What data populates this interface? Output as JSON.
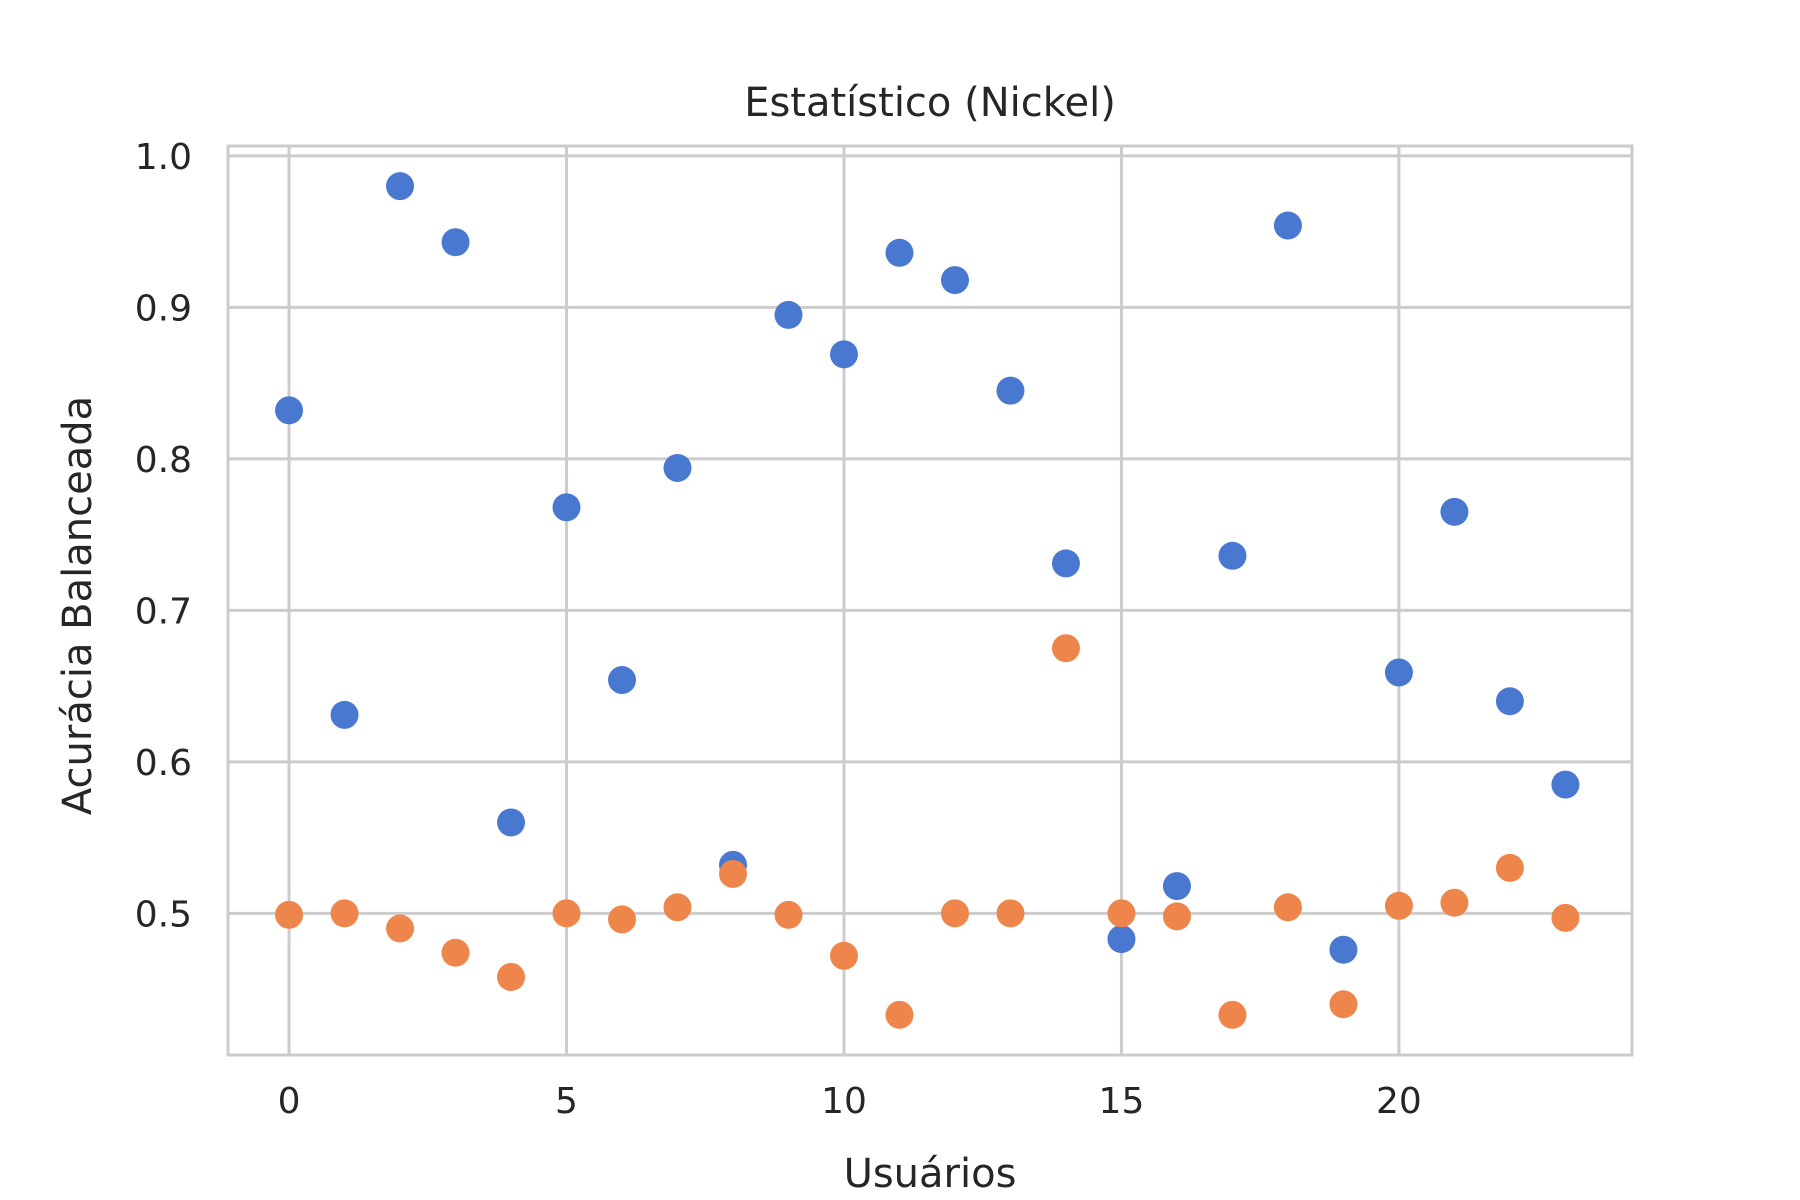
{
  "chart_data": {
    "type": "scatter",
    "title": "Estatístico (Nickel)",
    "xlabel": "Usuários",
    "ylabel": "Acurácia Balanceada",
    "xlim": [
      -1.1,
      24.2
    ],
    "ylim": [
      0.4065,
      1.0065
    ],
    "xticks": [
      0,
      5,
      10,
      15,
      20
    ],
    "xtick_labels": [
      "0",
      "5",
      "10",
      "15",
      "20"
    ],
    "yticks": [
      0.5,
      0.6,
      0.7,
      0.8,
      0.9,
      1.0
    ],
    "ytick_labels": [
      "0.5",
      "0.6",
      "0.7",
      "0.8",
      "0.9",
      "1.0"
    ],
    "grid": true,
    "x": [
      0,
      1,
      2,
      3,
      4,
      5,
      6,
      7,
      8,
      9,
      10,
      11,
      12,
      13,
      14,
      15,
      16,
      17,
      18,
      19,
      20,
      21,
      22,
      23
    ],
    "series": [
      {
        "color": "#4878d0",
        "values": [
          0.832,
          0.631,
          0.98,
          0.943,
          0.56,
          0.768,
          0.654,
          0.794,
          0.532,
          0.895,
          0.869,
          0.936,
          0.918,
          0.845,
          0.731,
          0.483,
          0.518,
          0.736,
          0.954,
          0.476,
          0.659,
          0.765,
          0.64,
          0.585
        ]
      },
      {
        "color": "#ee854a",
        "values": [
          0.499,
          0.5,
          0.49,
          0.474,
          0.458,
          0.5,
          0.496,
          0.504,
          0.526,
          0.499,
          0.472,
          0.433,
          0.5,
          0.5,
          0.675,
          0.5,
          0.498,
          0.433,
          0.504,
          0.44,
          0.505,
          0.507,
          0.53,
          0.497
        ]
      }
    ]
  }
}
